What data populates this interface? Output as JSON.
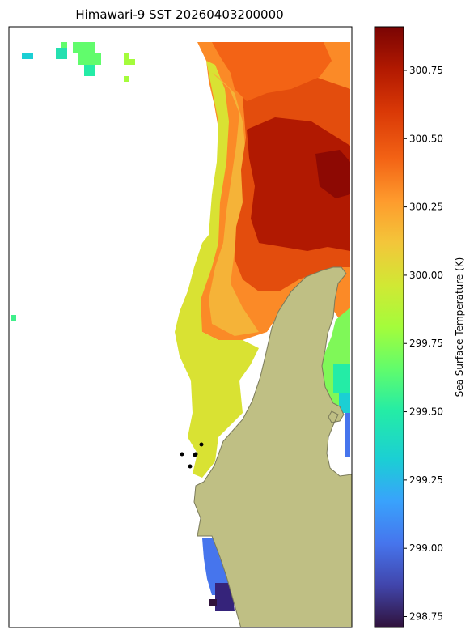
{
  "title": "Himawari-9 SST 20260403200000",
  "colorbar": {
    "label": "Sea Surface Temperature (K)",
    "ticks": [
      "300.75",
      "300.50",
      "300.25",
      "300.00",
      "299.75",
      "299.50",
      "299.25",
      "299.00",
      "298.75"
    ],
    "range": [
      298.71,
      300.91
    ],
    "colormap": "turbo"
  },
  "map": {
    "land_color": "#bfbf84",
    "coast_color": "#7a7a5a",
    "markers": 5,
    "marker_color": "#000000"
  }
}
